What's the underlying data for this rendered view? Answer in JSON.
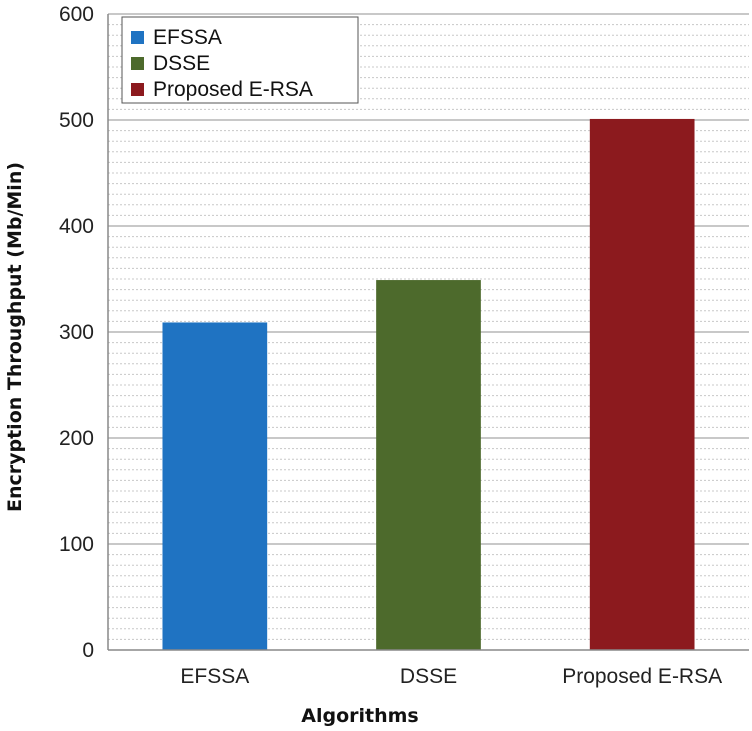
{
  "chart_data": {
    "type": "bar",
    "categories": [
      "EFSSA",
      "DSSE",
      "Proposed E-RSA"
    ],
    "values": [
      309,
      349,
      501
    ],
    "colors": [
      "#1f73c2",
      "#4d6a2c",
      "#8c1a1e"
    ],
    "xlabel": "Algorithms",
    "ylabel": "Encryption Throughput (Mb/Min)",
    "ylim": [
      0,
      600
    ],
    "yticks": [
      0,
      100,
      200,
      300,
      400,
      500,
      600
    ],
    "legend": {
      "placement": "top-left",
      "entries": [
        "EFSSA",
        "DSSE",
        "Proposed E-RSA"
      ]
    },
    "grid": true
  }
}
